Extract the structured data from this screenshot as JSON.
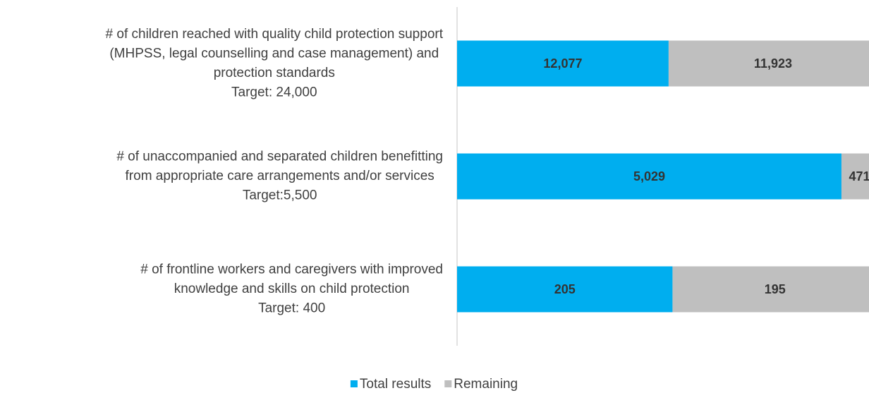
{
  "chart_data": {
    "type": "stacked-bar-100",
    "orientation": "horizontal",
    "categories": [
      [
        "# of children reached with quality child protection support",
        "(MHPSS, legal counselling and case management) and",
        "protection standards",
        "Target: 24,000"
      ],
      [
        "# of unaccompanied and separated children benefitting",
        "from appropriate care arrangements and/or services",
        "Target:5,500"
      ],
      [
        "# of frontline workers and caregivers with improved",
        "knowledge and skills on child protection",
        "Target: 400"
      ]
    ],
    "series": [
      {
        "name": "Total results",
        "color": "#00aeef",
        "values": [
          12077,
          5029,
          205
        ],
        "value_labels": [
          "12,077",
          "5,029",
          "205"
        ]
      },
      {
        "name": "Remaining",
        "color": "#bfbfbf",
        "values": [
          11923,
          471,
          195
        ],
        "value_labels": [
          "11,923",
          "471",
          "195"
        ]
      }
    ],
    "legend": "bottom"
  }
}
